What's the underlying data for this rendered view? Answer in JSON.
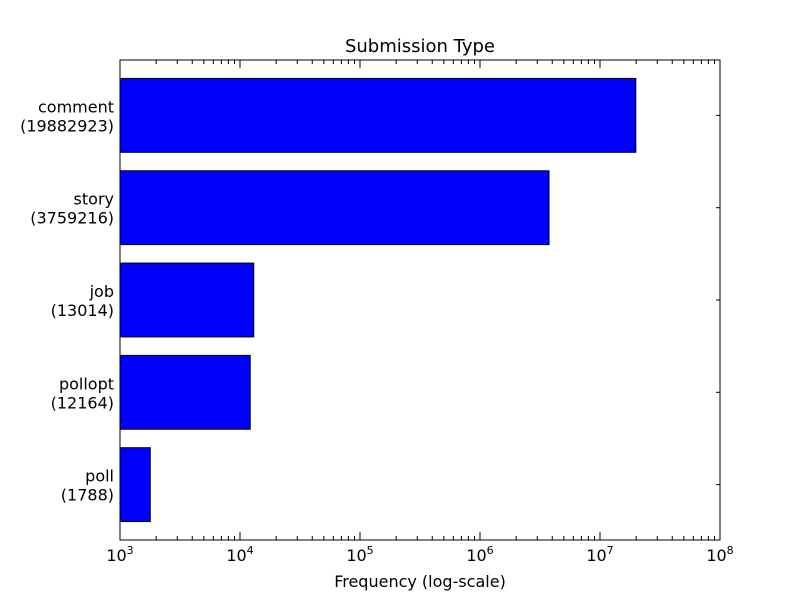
{
  "chart_data": {
    "type": "bar",
    "orientation": "horizontal",
    "title": "Submission Type",
    "xlabel": "Frequency (log-scale)",
    "ylabel": "",
    "x_scale": "log",
    "xlim": [
      1000,
      100000000
    ],
    "x_ticks": [
      {
        "base": "10",
        "exp": "3"
      },
      {
        "base": "10",
        "exp": "4"
      },
      {
        "base": "10",
        "exp": "5"
      },
      {
        "base": "10",
        "exp": "6"
      },
      {
        "base": "10",
        "exp": "7"
      },
      {
        "base": "10",
        "exp": "8"
      }
    ],
    "categories": [
      {
        "name": "comment",
        "count_label": "(19882923)"
      },
      {
        "name": "story",
        "count_label": "(3759216)"
      },
      {
        "name": "job",
        "count_label": "(13014)"
      },
      {
        "name": "pollopt",
        "count_label": "(12164)"
      },
      {
        "name": "poll",
        "count_label": "(1788)"
      }
    ],
    "values": [
      19882923,
      3759216,
      13014,
      12164,
      1788
    ],
    "bar_color": "#0000ff",
    "edge_color": "#000000",
    "grid": false,
    "legend": "none"
  }
}
